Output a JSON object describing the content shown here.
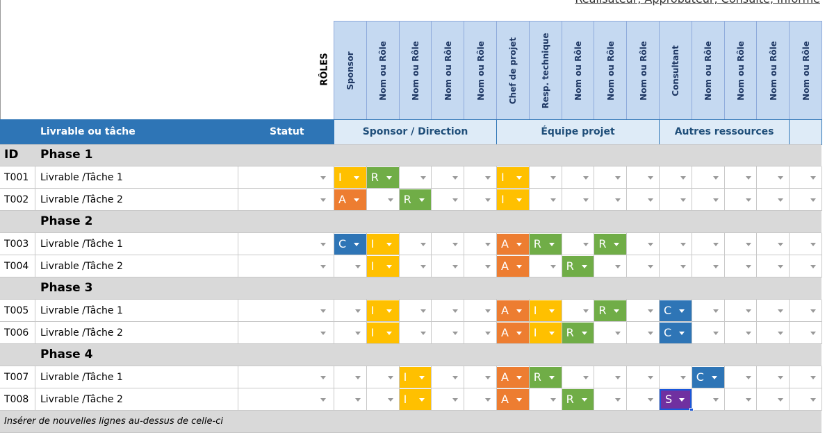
{
  "top_note": "Réalisateur, Approbateur, Consulté, Informé",
  "roles_label": "RÔLES",
  "columns": {
    "task": "Livrable ou tâche",
    "status": "Statut"
  },
  "id_label": "ID",
  "groups": [
    {
      "name": "Sponsor / Direction",
      "roles": [
        "Sponsor",
        "Nom ou Rôle",
        "Nom ou Rôle",
        "Nom ou Rôle",
        "Nom ou Rôle"
      ]
    },
    {
      "name": "Équipe projet",
      "roles": [
        "Chef de projet",
        "Resp. technique",
        "Nom ou Rôle",
        "Nom ou Rôle",
        "Nom ou Rôle"
      ]
    },
    {
      "name": "Autres ressources",
      "roles": [
        "Consultant",
        "Nom ou Rôle",
        "Nom ou Rôle",
        "Nom ou Rôle"
      ]
    },
    {
      "roles": [
        "Nom ou Rôle"
      ]
    }
  ],
  "raci_colors": {
    "I": "#ffc000",
    "R": "#70ad47",
    "A": "#ed7d31",
    "C": "#2e75b6",
    "S": "#7030a0"
  },
  "phases": [
    {
      "name": "Phase 1",
      "tasks": [
        {
          "id": "T001",
          "name": "Livrable /Tâche 1",
          "raci": [
            "I",
            "R",
            null,
            null,
            null,
            "I",
            null,
            null,
            null,
            null,
            null,
            null,
            null,
            null,
            null
          ]
        },
        {
          "id": "T002",
          "name": "Livrable /Tâche 2",
          "raci": [
            "A",
            null,
            "R",
            null,
            null,
            "I",
            null,
            null,
            null,
            null,
            null,
            null,
            null,
            null,
            null
          ]
        }
      ]
    },
    {
      "name": "Phase 2",
      "tasks": [
        {
          "id": "T003",
          "name": "Livrable /Tâche 1",
          "raci": [
            "C",
            "I",
            null,
            null,
            null,
            "A",
            "R",
            null,
            "R",
            null,
            null,
            null,
            null,
            null,
            null
          ]
        },
        {
          "id": "T004",
          "name": "Livrable /Tâche 2",
          "raci": [
            null,
            "I",
            null,
            null,
            null,
            "A",
            null,
            "R",
            null,
            null,
            null,
            null,
            null,
            null,
            null
          ]
        }
      ]
    },
    {
      "name": "Phase 3",
      "tasks": [
        {
          "id": "T005",
          "name": "Livrable /Tâche 1",
          "raci": [
            null,
            "I",
            null,
            null,
            null,
            "A",
            "I",
            null,
            "R",
            null,
            "C",
            null,
            null,
            null,
            null
          ]
        },
        {
          "id": "T006",
          "name": "Livrable /Tâche 2",
          "raci": [
            null,
            "I",
            null,
            null,
            null,
            "A",
            "I",
            "R",
            null,
            null,
            "C",
            null,
            null,
            null,
            null
          ]
        }
      ]
    },
    {
      "name": "Phase 4",
      "tasks": [
        {
          "id": "T007",
          "name": "Livrable /Tâche 1",
          "raci": [
            null,
            null,
            "I",
            null,
            null,
            "A",
            "R",
            null,
            null,
            null,
            null,
            "C",
            null,
            null,
            null
          ]
        },
        {
          "id": "T008",
          "name": "Livrable /Tâche 2",
          "raci": [
            null,
            null,
            "I",
            null,
            null,
            "A",
            null,
            "R",
            null,
            null,
            "S",
            null,
            null,
            null,
            null
          ]
        }
      ]
    }
  ],
  "footer": "Insérer de nouvelles lignes au-dessus de celle-ci"
}
